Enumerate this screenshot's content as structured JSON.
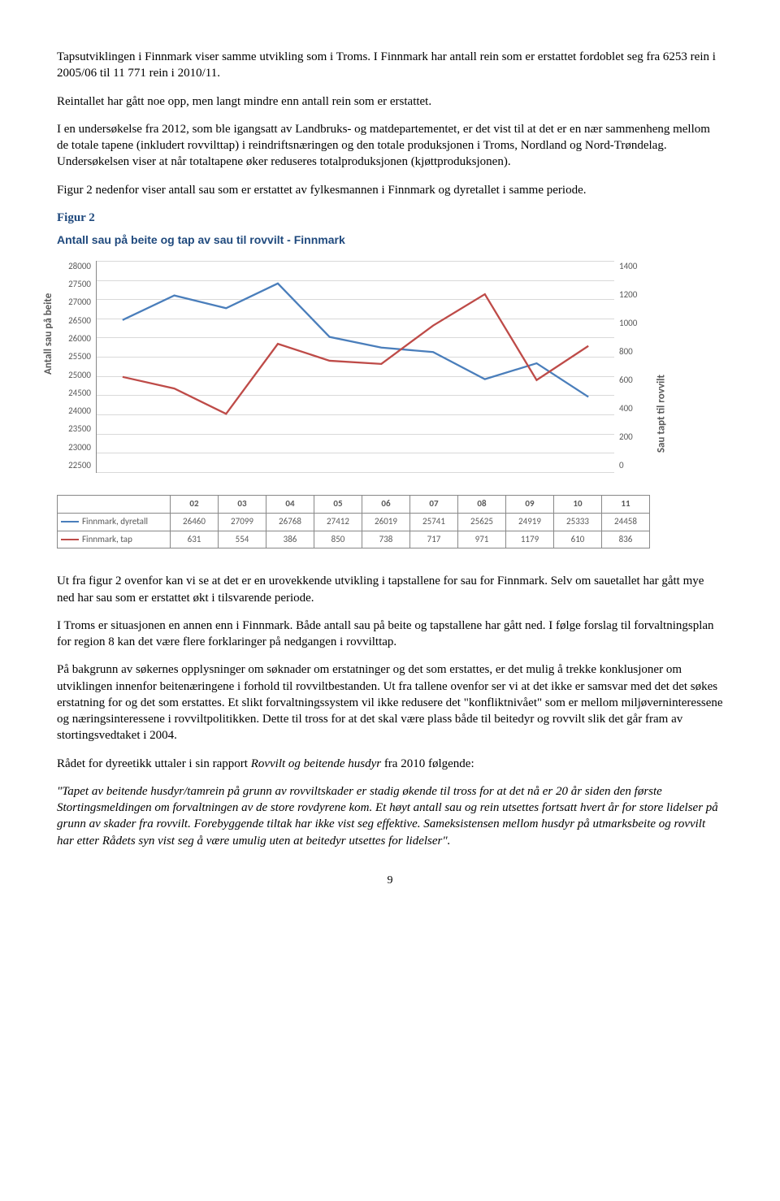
{
  "paragraphs": {
    "p1": "Tapsutviklingen i Finnmark viser samme utvikling som i Troms. I Finnmark har antall rein som er erstattet fordoblet seg fra 6253 rein i 2005/06 til 11 771 rein i 2010/11.",
    "p2": "Reintallet har gått noe opp, men langt mindre enn antall rein som er erstattet.",
    "p3": "I en undersøkelse fra 2012, som ble igangsatt av Landbruks- og matdepartementet, er det vist til at det er en nær sammenheng mellom de totale tapene (inkludert rovvilttap) i reindriftsnæringen og den totale produksjonen i Troms, Nordland og Nord-Trøndelag. Undersøkelsen viser at når totaltapene øker reduseres totalproduksjonen (kjøttproduksjonen).",
    "p4": "Figur 2 nedenfor viser antall sau som er erstattet av fylkesmannen i Finnmark og dyretallet i samme periode.",
    "fig_label": "Figur 2",
    "p5": "Ut fra figur 2 ovenfor kan vi se at det er en urovekkende utvikling i tapstallene for sau for Finnmark. Selv om sauetallet har gått mye ned har sau som er erstattet økt i tilsvarende periode.",
    "p6": "I Troms er situasjonen en annen enn i Finnmark. Både antall sau på beite og tapstallene har gått ned. I følge forslag til forvaltningsplan for region 8 kan det være flere forklaringer på nedgangen i rovvilttap.",
    "p7": "På bakgrunn av søkernes opplysninger om søknader om erstatninger og det som erstattes, er det mulig å trekke konklusjoner om utviklingen innenfor beitenæringene i forhold til rovviltbestanden. Ut fra tallene ovenfor ser vi at det ikke er samsvar med det det søkes erstatning for og det som erstattes. Et slikt forvaltningssystem vil ikke redusere det \"konfliktnivået\" som er mellom miljøverninteressene og næringsinteressene i rovviltpolitikken. Dette til tross for at det skal være plass både til beitedyr og rovvilt slik det går fram av stortingsvedtaket i 2004.",
    "p8a": "Rådet for dyreetikk uttaler i sin rapport ",
    "p8_italic": "Rovvilt og beitende husdyr",
    "p8b": " fra 2010 følgende:",
    "p9": "\"Tapet av beitende husdyr/tamrein på grunn av rovviltskader er stadig økende til tross for at det nå er 20 år siden den første Stortingsmeldingen om forvaltningen av de store rovdyrene kom. Et høyt antall sau og rein utsettes fortsatt hvert år for store lidelser på grunn av skader fra rovvilt. Forebyggende tiltak har ikke vist seg effektive. Sameksistensen mellom husdyr på utmarksbeite og rovvilt har etter Rådets syn vist seg å være umulig uten at beitedyr utsettes for lidelser\"."
  },
  "chart": {
    "title": "Antall sau på beite og tap av sau til rovvilt - Finnmark",
    "y_left_label": "Antall sau på beite",
    "y_right_label": "Sau tapt til rovvilt",
    "y_left_min": 22500,
    "y_left_max": 28000,
    "y_left_step": 500,
    "y_left_ticks": [
      "28000",
      "27500",
      "27000",
      "26500",
      "26000",
      "25500",
      "25000",
      "24500",
      "24000",
      "23500",
      "23000",
      "22500"
    ],
    "y_right_min": 0,
    "y_right_max": 1400,
    "y_right_step": 200,
    "y_right_ticks": [
      "1400",
      "1200",
      "1000",
      "800",
      "600",
      "400",
      "200",
      "0"
    ],
    "categories": [
      "02",
      "03",
      "04",
      "05",
      "06",
      "07",
      "08",
      "09",
      "10",
      "11"
    ],
    "series": [
      {
        "name": "Finnmark, dyretall",
        "color": "#4a7ebb",
        "axis": "left",
        "values": [
          26460,
          27099,
          26768,
          27412,
          26019,
          25741,
          25625,
          24919,
          25333,
          24458
        ]
      },
      {
        "name": "Finnmark, tap",
        "color": "#be4b48",
        "axis": "right",
        "values": [
          631,
          554,
          386,
          850,
          738,
          717,
          971,
          1179,
          610,
          836
        ]
      }
    ],
    "grid_color": "#d9d9d9",
    "axis_color": "#888888",
    "background": "#ffffff",
    "line_width": 2.3
  },
  "page_number": "9"
}
